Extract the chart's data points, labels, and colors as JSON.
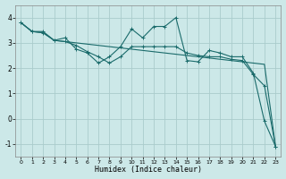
{
  "xlabel": "Humidex (Indice chaleur)",
  "bg_color": "#cce8e8",
  "grid_color": "#aacccc",
  "line_color": "#1a6b6b",
  "xlim": [
    -0.5,
    23.5
  ],
  "ylim": [
    -1.5,
    4.5
  ],
  "yticks": [
    -1,
    0,
    1,
    2,
    3,
    4
  ],
  "xticks": [
    0,
    1,
    2,
    3,
    4,
    5,
    6,
    7,
    8,
    9,
    10,
    11,
    12,
    13,
    14,
    15,
    16,
    17,
    18,
    19,
    20,
    21,
    22,
    23
  ],
  "series1": [
    [
      0,
      3.8
    ],
    [
      1,
      3.45
    ],
    [
      2,
      3.45
    ],
    [
      3,
      3.1
    ],
    [
      4,
      3.2
    ],
    [
      5,
      2.75
    ],
    [
      6,
      2.6
    ],
    [
      7,
      2.2
    ],
    [
      8,
      2.45
    ],
    [
      9,
      2.85
    ],
    [
      10,
      3.55
    ],
    [
      11,
      3.2
    ],
    [
      12,
      3.65
    ],
    [
      13,
      3.65
    ],
    [
      14,
      4.0
    ],
    [
      15,
      2.3
    ],
    [
      16,
      2.25
    ],
    [
      17,
      2.7
    ],
    [
      18,
      2.6
    ],
    [
      19,
      2.45
    ],
    [
      20,
      2.45
    ],
    [
      21,
      1.8
    ],
    [
      22,
      -0.1
    ],
    [
      23,
      -1.1
    ]
  ],
  "series2": [
    [
      0,
      3.8
    ],
    [
      1,
      3.45
    ],
    [
      2,
      3.4
    ],
    [
      3,
      3.1
    ],
    [
      4,
      3.05
    ],
    [
      5,
      3.0
    ],
    [
      6,
      2.95
    ],
    [
      7,
      2.9
    ],
    [
      8,
      2.85
    ],
    [
      9,
      2.8
    ],
    [
      10,
      2.75
    ],
    [
      11,
      2.7
    ],
    [
      12,
      2.65
    ],
    [
      13,
      2.6
    ],
    [
      14,
      2.55
    ],
    [
      15,
      2.5
    ],
    [
      16,
      2.45
    ],
    [
      17,
      2.4
    ],
    [
      18,
      2.35
    ],
    [
      19,
      2.3
    ],
    [
      20,
      2.25
    ],
    [
      21,
      2.2
    ],
    [
      22,
      2.15
    ],
    [
      23,
      -1.1
    ]
  ],
  "series3": [
    [
      0,
      3.8
    ],
    [
      1,
      3.45
    ],
    [
      2,
      3.4
    ],
    [
      3,
      3.1
    ],
    [
      4,
      3.05
    ],
    [
      5,
      2.9
    ],
    [
      6,
      2.65
    ],
    [
      7,
      2.45
    ],
    [
      8,
      2.2
    ],
    [
      9,
      2.45
    ],
    [
      10,
      2.85
    ],
    [
      11,
      2.85
    ],
    [
      12,
      2.85
    ],
    [
      13,
      2.85
    ],
    [
      14,
      2.85
    ],
    [
      15,
      2.6
    ],
    [
      16,
      2.5
    ],
    [
      17,
      2.45
    ],
    [
      18,
      2.45
    ],
    [
      19,
      2.35
    ],
    [
      20,
      2.3
    ],
    [
      21,
      1.75
    ],
    [
      22,
      1.3
    ],
    [
      23,
      -1.1
    ]
  ]
}
